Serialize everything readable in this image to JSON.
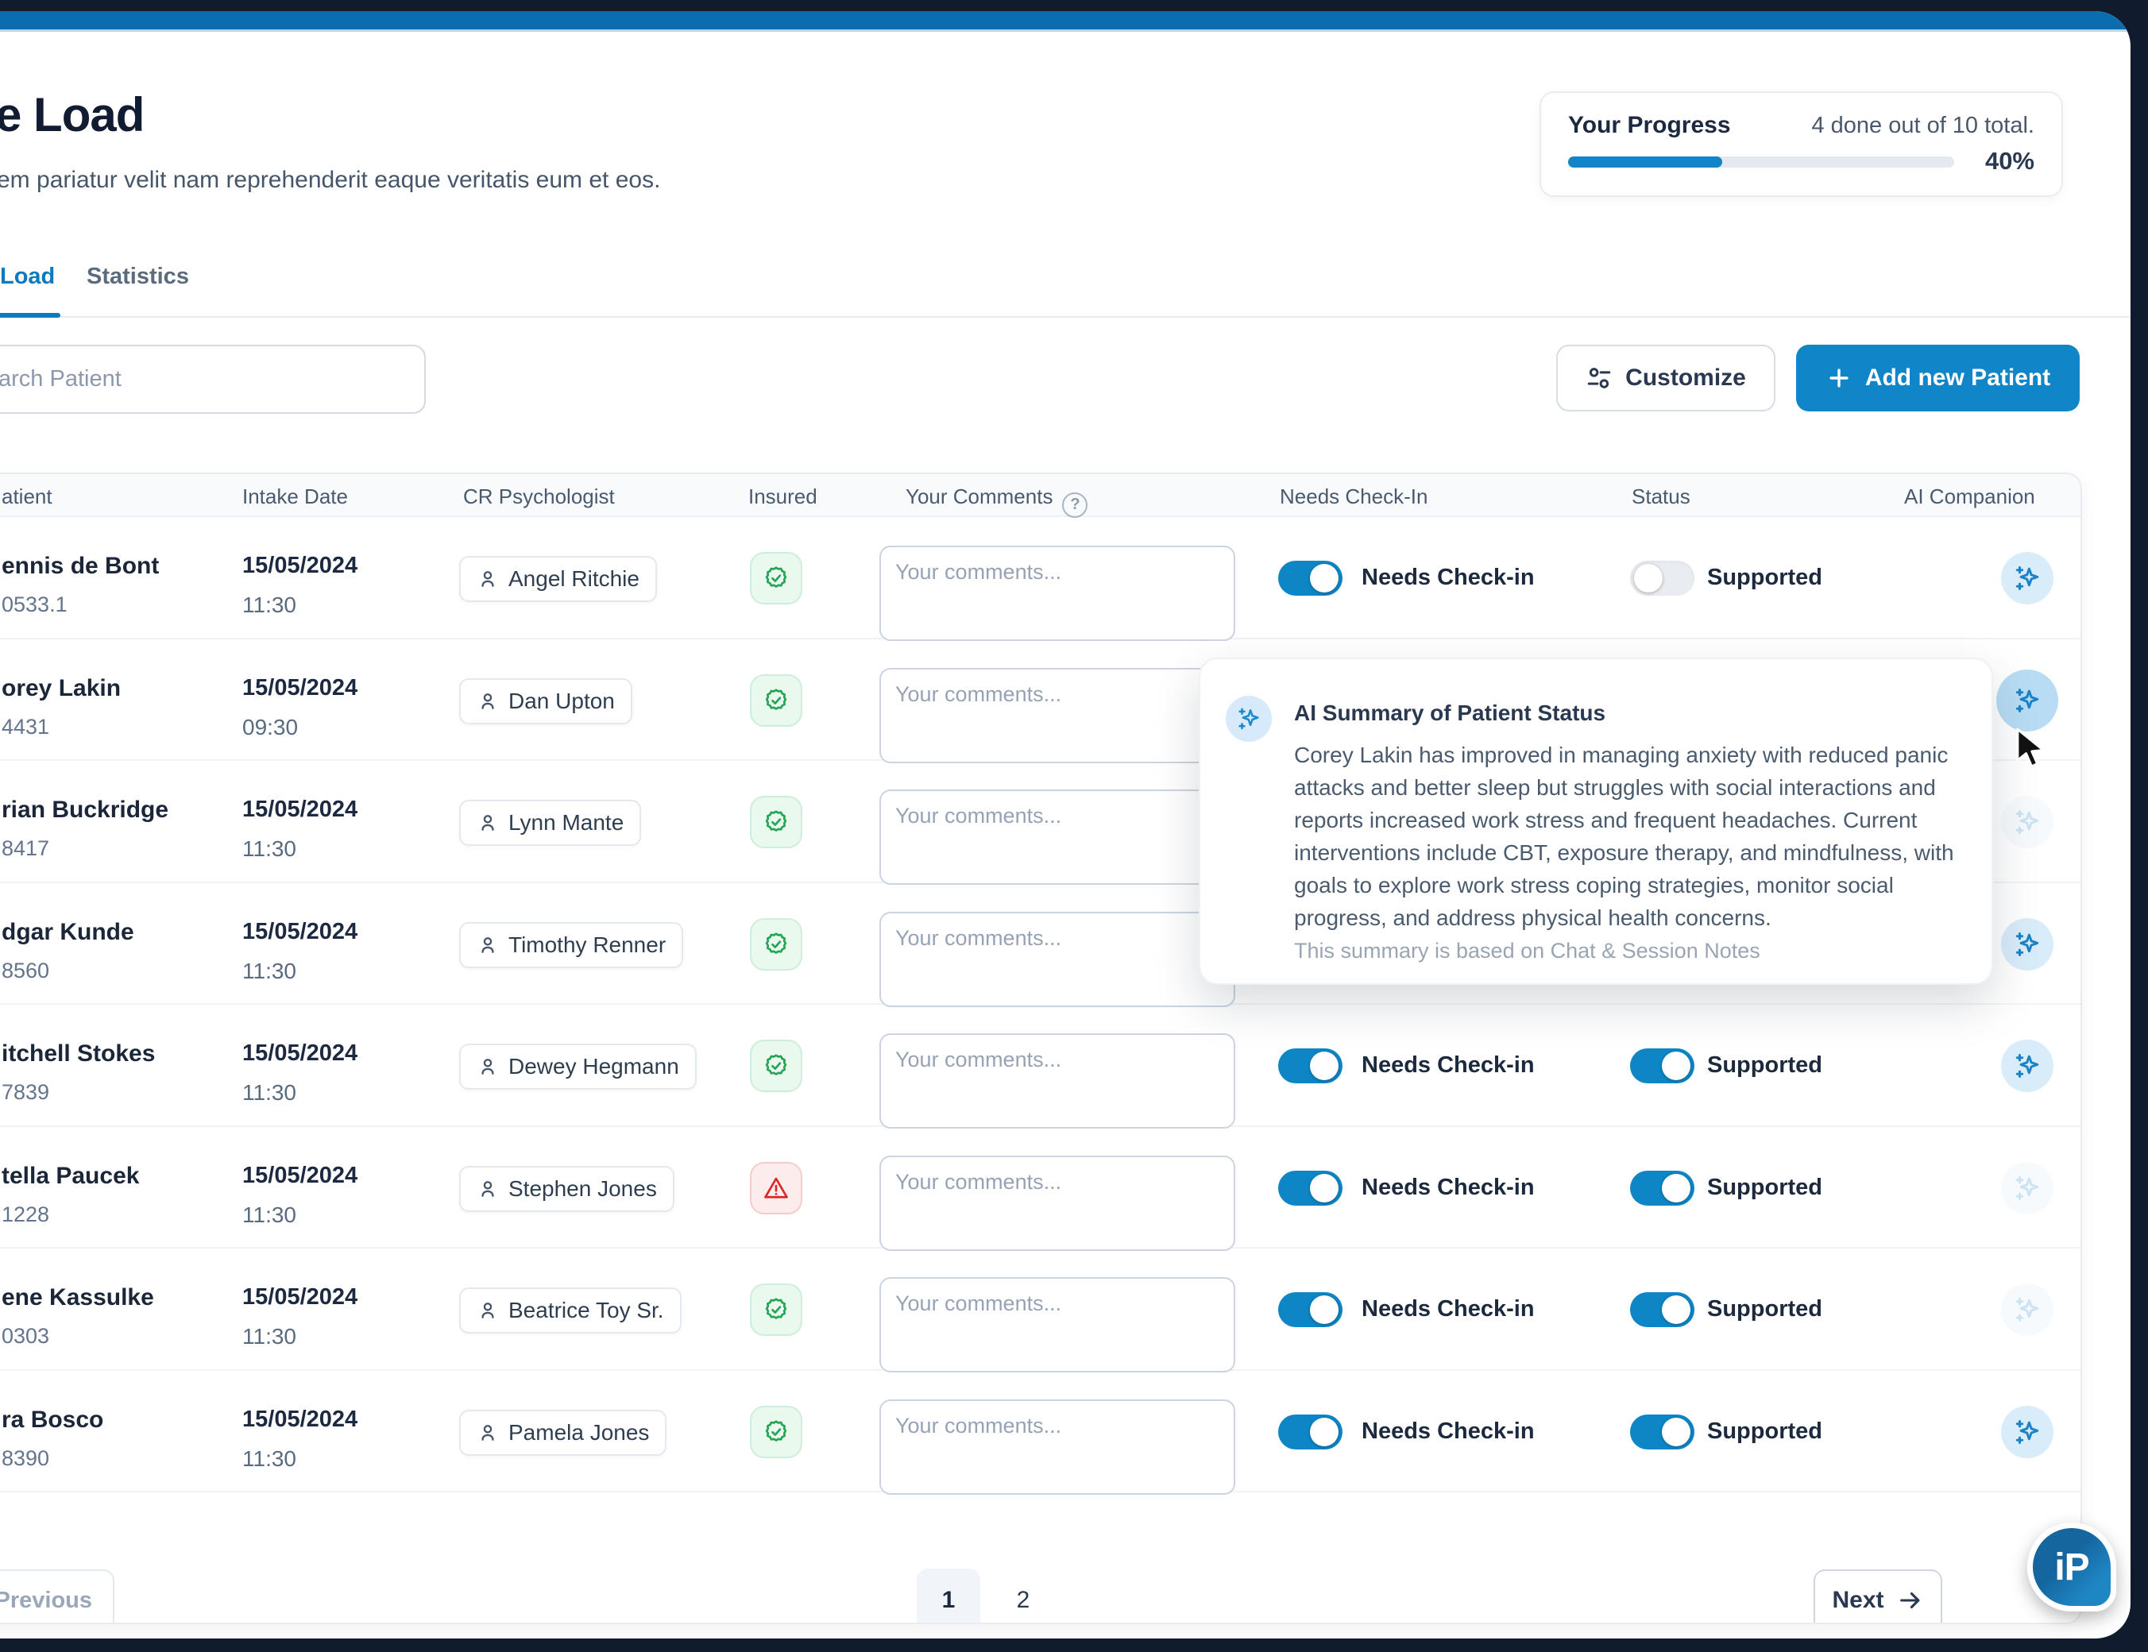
{
  "colors": {
    "frame": "#101b2d",
    "top_bar": "#0a6dad",
    "accent": "#0e86c6",
    "add_button": "#1086c8",
    "active_tab": "#0c7abf",
    "insured_ok": "#27a356",
    "insured_alert": "#dc2626",
    "ai_icon": "#1d83c6"
  },
  "app": {
    "logo_text": "iP"
  },
  "header": {
    "title": "e Load",
    "subtitle": "em pariatur velit nam reprehenderit eaque veritatis eum et eos."
  },
  "progress": {
    "label": "Your Progress",
    "count_text": "4 done out of 10 total.",
    "percent": 40,
    "percent_text": "40%"
  },
  "tabs": [
    {
      "label": "Load",
      "active": true
    },
    {
      "label": "Statistics",
      "active": false
    }
  ],
  "toolbar": {
    "search_placeholder": "arch Patient",
    "customize_label": "Customize",
    "add_label": "Add new Patient"
  },
  "table": {
    "columns": [
      "atient",
      "Intake Date",
      "CR Psychologist",
      "Insured",
      "Your Comments",
      "Needs Check-In",
      "Status",
      "AI Companion"
    ],
    "comments_placeholder": "Your comments...",
    "checkin_label": "Needs Check-in",
    "status_label": "Supported",
    "rows": [
      {
        "name": "ennis de Bont",
        "id": "0533.1",
        "date": "15/05/2024",
        "time": "11:30",
        "psychologist": "Angel Ritchie",
        "insured": "ok",
        "needs_checkin": true,
        "status_on": false,
        "ai": "on"
      },
      {
        "name": "orey Lakin",
        "id": "4431",
        "date": "15/05/2024",
        "time": "09:30",
        "psychologist": "Dan Upton",
        "insured": "ok",
        "needs_checkin": true,
        "status_on": true,
        "ai": "hover"
      },
      {
        "name": "rian Buckridge",
        "id": "8417",
        "date": "15/05/2024",
        "time": "11:30",
        "psychologist": "Lynn Mante",
        "insured": "ok",
        "needs_checkin": true,
        "status_on": true,
        "ai": "faded"
      },
      {
        "name": "dgar Kunde",
        "id": "8560",
        "date": "15/05/2024",
        "time": "11:30",
        "psychologist": "Timothy Renner",
        "insured": "ok",
        "needs_checkin": true,
        "status_on": true,
        "ai": "on"
      },
      {
        "name": "itchell Stokes",
        "id": "7839",
        "date": "15/05/2024",
        "time": "11:30",
        "psychologist": "Dewey Hegmann",
        "insured": "ok",
        "needs_checkin": true,
        "status_on": true,
        "ai": "on"
      },
      {
        "name": "tella Paucek",
        "id": "1228",
        "date": "15/05/2024",
        "time": "11:30",
        "psychologist": "Stephen Jones",
        "insured": "alert",
        "needs_checkin": true,
        "status_on": true,
        "ai": "faded"
      },
      {
        "name": "ene Kassulke",
        "id": "0303",
        "date": "15/05/2024",
        "time": "11:30",
        "psychologist": "Beatrice Toy Sr.",
        "insured": "ok",
        "needs_checkin": true,
        "status_on": true,
        "ai": "faded"
      },
      {
        "name": "ra Bosco",
        "id": "8390",
        "date": "15/05/2024",
        "time": "11:30",
        "psychologist": "Pamela Jones",
        "insured": "ok",
        "needs_checkin": true,
        "status_on": true,
        "ai": "on"
      }
    ]
  },
  "popup": {
    "title": "AI Summary of Patient Status",
    "body": "Corey Lakin has improved in managing anxiety with reduced panic attacks and better sleep but struggles with social interactions and reports increased work stress and frequent headaches. Current interventions include CBT, exposure therapy, and mindfulness, with goals to explore work stress coping strategies, monitor social progress, and address physical health concerns.",
    "footer": "This summary is based on Chat & Session Notes"
  },
  "pagination": {
    "previous": "Previous",
    "pages": [
      "1",
      "2"
    ],
    "active_page": "1",
    "next": "Next"
  }
}
